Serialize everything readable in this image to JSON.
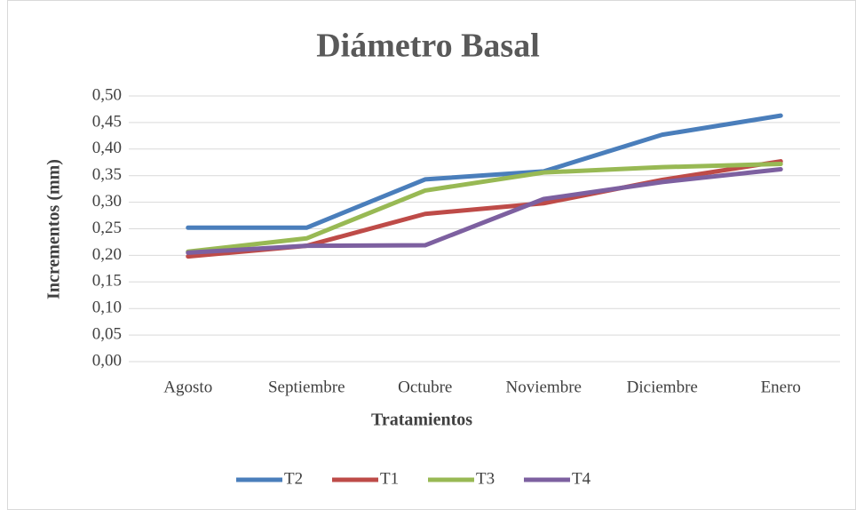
{
  "chart_data": {
    "type": "line",
    "title": "Diámetro Basal",
    "x_label": "Tratamientos",
    "y_label": "Incrementos (mm)",
    "categories": [
      "Agosto",
      "Septiembre",
      "Octubre",
      "Noviembre",
      "Diciembre",
      "Enero"
    ],
    "series": [
      {
        "name": "T2",
        "color": "#4a7ebb",
        "values": [
          0.252,
          0.252,
          0.343,
          0.358,
          0.427,
          0.463
        ]
      },
      {
        "name": "T1",
        "color": "#be4b48",
        "values": [
          0.198,
          0.218,
          0.278,
          0.298,
          0.342,
          0.377
        ]
      },
      {
        "name": "T3",
        "color": "#98b954",
        "values": [
          0.207,
          0.232,
          0.322,
          0.356,
          0.366,
          0.372
        ]
      },
      {
        "name": "T4",
        "color": "#7d60a0",
        "values": [
          0.205,
          0.218,
          0.219,
          0.306,
          0.338,
          0.362
        ]
      }
    ],
    "ylim": [
      0,
      0.5
    ],
    "yticks": [
      {
        "value": 0,
        "label": "0,00"
      },
      {
        "value": 0.05,
        "label": "0,05"
      },
      {
        "value": 0.1,
        "label": "0,10"
      },
      {
        "value": 0.15,
        "label": "0,15"
      },
      {
        "value": 0.2,
        "label": "0,20"
      },
      {
        "value": 0.25,
        "label": "0,25"
      },
      {
        "value": 0.3,
        "label": "0,30"
      },
      {
        "value": 0.35,
        "label": "0,35"
      },
      {
        "value": 0.4,
        "label": "0,40"
      },
      {
        "value": 0.45,
        "label": "0,45"
      },
      {
        "value": 0.5,
        "label": "0,50"
      }
    ],
    "grid": true,
    "legend": "bottom"
  }
}
